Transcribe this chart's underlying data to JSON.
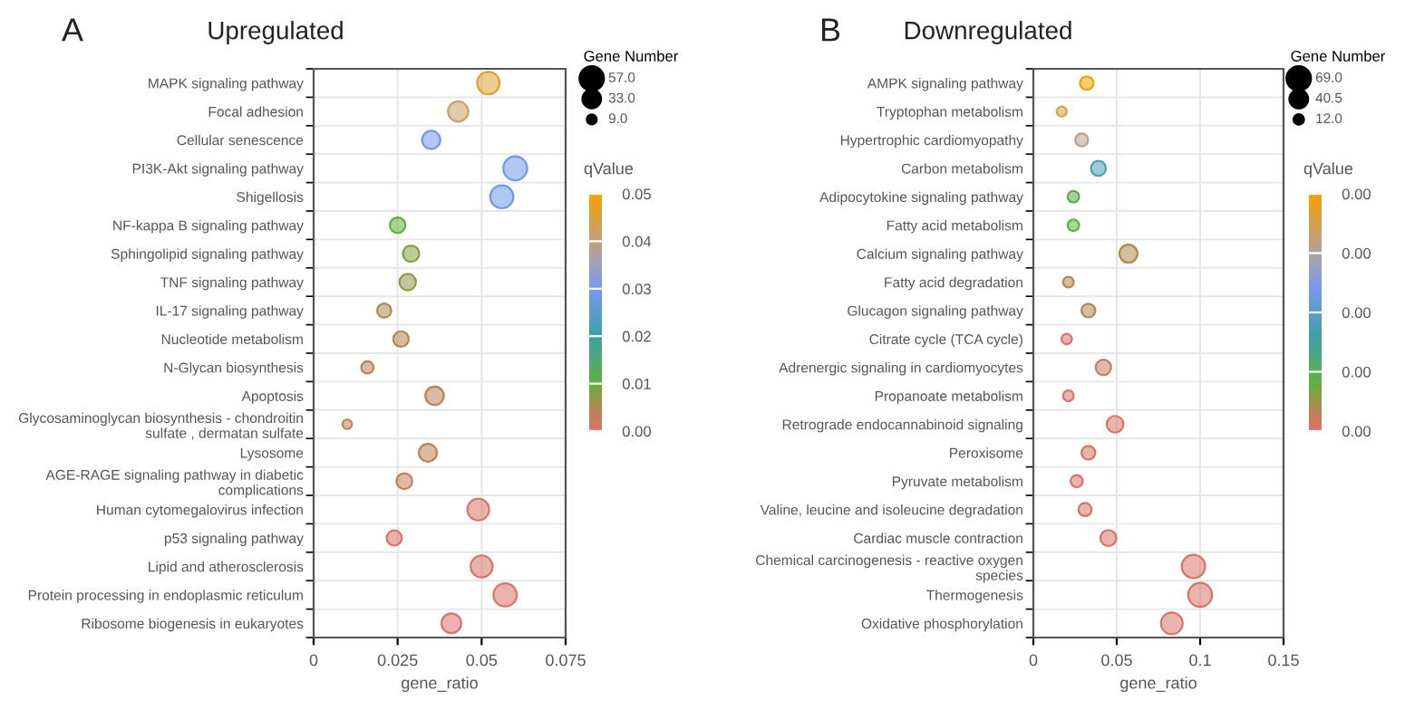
{
  "chart_data": [
    {
      "type": "bubble",
      "orientation": "horizontal",
      "title": "Upregulated",
      "annotations": [
        "A"
      ],
      "xlabel": "gene_ratio",
      "legend_title": "Gene Number",
      "clabel": "qValue",
      "grid": true,
      "marker": "circle",
      "categories": [
        "MAPK signaling pathway",
        "Focal adhesion",
        "Cellular senescence",
        "PI3K-Akt signaling pathway",
        "Shigellosis",
        "NF-kappa B signaling pathway",
        "Sphingolipid signaling pathway",
        "TNF signaling pathway",
        "IL-17 signaling pathway",
        "Nucleotide metabolism",
        "N-Glycan biosynthesis",
        "Apoptosis",
        "Glycosaminoglycan biosynthesis - chondroitin\nsulfate , dermatan sulfate",
        "Lysosome",
        "AGE-RAGE signaling pathway in diabetic\ncomplications",
        "Human cytomegalovirus infection",
        "p53 signaling pathway",
        "Lipid and atherosclerosis",
        "Protein processing in endoplasmic reticulum",
        "Ribosome biogenesis in eukaryotes"
      ],
      "series": [
        {
          "values": [
            0.052,
            0.043,
            0.035,
            0.06,
            0.056,
            0.025,
            0.029,
            0.028,
            0.021,
            0.026,
            0.016,
            0.036,
            0.01,
            0.034,
            0.027,
            0.049,
            0.024,
            0.05,
            0.057,
            0.041
          ],
          "sizes": [
            50,
            41,
            33,
            57,
            53,
            24,
            27,
            27,
            20,
            24,
            15,
            34,
            9,
            32,
            25,
            47,
            23,
            48,
            54,
            39
          ],
          "cvalues": [
            0.046,
            0.042,
            0.03,
            0.029,
            0.028,
            0.01,
            0.008,
            0.007,
            0.005,
            0.005,
            0.004,
            0.004,
            0.003,
            0.004,
            0.003,
            0.001,
            0.001,
            0.001,
            0.001,
            0.0
          ]
        }
      ],
      "size_legend": [
        {
          "value": 57,
          "label": "57.0"
        },
        {
          "value": 33,
          "label": "33.0"
        },
        {
          "value": 9,
          "label": "9.0"
        }
      ],
      "xlim": [
        0,
        0.075
      ],
      "xticks": [
        0,
        0.025,
        0.05,
        0.075
      ],
      "clim": [
        0,
        0.05
      ],
      "cticks": [
        {
          "value": 0,
          "label": "0.00"
        },
        {
          "value": 0.01,
          "label": "0.01"
        },
        {
          "value": 0.02,
          "label": "0.02"
        },
        {
          "value": 0.03,
          "label": "0.03"
        },
        {
          "value": 0.04,
          "label": "0.04"
        },
        {
          "value": 0.05,
          "label": "0.05"
        }
      ]
    },
    {
      "type": "bubble",
      "orientation": "horizontal",
      "title": "Downregulated",
      "annotations": [
        "B"
      ],
      "xlabel": "gene_ratio",
      "legend_title": "Gene Number",
      "clabel": "qValue",
      "grid": true,
      "marker": "circle",
      "categories": [
        "AMPK signaling pathway",
        "Tryptophan metabolism",
        "Hypertrophic cardiomyopathy",
        "Carbon metabolism",
        "Adipocytokine signaling pathway",
        "Fatty acid metabolism",
        "Calcium signaling pathway",
        "Fatty acid degradation",
        "Glucagon signaling pathway",
        "Citrate cycle (TCA cycle)",
        "Adrenergic signaling in cardiomyocytes",
        "Propanoate metabolism",
        "Retrograde endocannabinoid signaling",
        "Peroxisome",
        "Pyruvate metabolism",
        "Valine, leucine and isoleucine degradation",
        "Cardiac muscle contraction",
        "Chemical carcinogenesis - reactive oxygen\nspecies",
        "Thermogenesis",
        "Oxidative phosphorylation"
      ],
      "series": [
        {
          "values": [
            0.032,
            0.017,
            0.029,
            0.039,
            0.024,
            0.024,
            0.057,
            0.021,
            0.033,
            0.02,
            0.042,
            0.021,
            0.049,
            0.033,
            0.026,
            0.031,
            0.045,
            0.096,
            0.1,
            0.083
          ],
          "sizes": [
            22,
            12,
            20,
            27,
            16,
            16,
            39,
            14,
            23,
            13,
            29,
            14,
            34,
            23,
            18,
            21,
            31,
            66,
            69,
            57
          ],
          "cvalues": [
            0.004,
            0.0036,
            0.0031,
            0.0018,
            0.0009,
            0.0008,
            0.0004,
            0.0004,
            0.0004,
            0.0001,
            0.0002,
            0.0001,
            0.0001,
            0.0001,
            0.0001,
            0.0001,
            0.0001,
            0.0001,
            0.0001,
            0.0001
          ]
        }
      ],
      "size_legend": [
        {
          "value": 69,
          "label": "69.0"
        },
        {
          "value": 40.5,
          "label": "40.5"
        },
        {
          "value": 12,
          "label": "12.0"
        }
      ],
      "xlim": [
        0,
        0.15
      ],
      "xticks": [
        0,
        0.05,
        0.1,
        0.15
      ],
      "clim": [
        0,
        0.004
      ],
      "cticks": [
        {
          "value": 0,
          "label": "0.00"
        },
        {
          "value": 0.001,
          "label": "0.00"
        },
        {
          "value": 0.002,
          "label": "0.00"
        },
        {
          "value": 0.003,
          "label": "0.00"
        },
        {
          "value": 0.004,
          "label": "0.00"
        }
      ]
    }
  ]
}
